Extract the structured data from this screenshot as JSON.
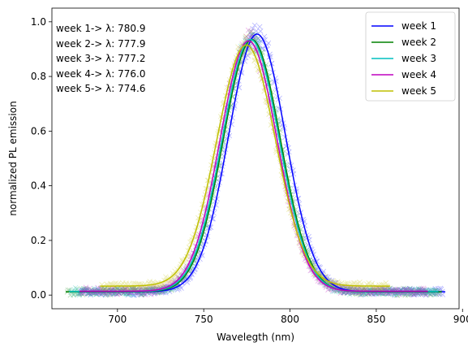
{
  "chart_data": {
    "type": "line",
    "title": "",
    "xlabel": "Wavelegth (nm)",
    "ylabel": "normalized PL emission",
    "xlim": [
      662,
      898
    ],
    "ylim": [
      -0.05,
      1.05
    ],
    "xticks": [
      700,
      750,
      800,
      850,
      900
    ],
    "yticks": [
      0.0,
      0.2,
      0.4,
      0.6,
      0.8,
      1.0
    ],
    "xtick_labels": [
      "700",
      "750",
      "800",
      "850",
      "900"
    ],
    "ytick_labels": [
      "0.0",
      "0.2",
      "0.4",
      "0.6",
      "0.8",
      "1.0"
    ],
    "grid": false,
    "legend_position": "top-right",
    "annotations": [
      "week 1-> λ: 780.9",
      "week 2-> λ: 777.9",
      "week 3-> λ: 777.2",
      "week 4-> λ: 776.0",
      "week 5-> λ: 774.6"
    ],
    "series": [
      {
        "name": "week 1",
        "color": "#0000ff",
        "peak_nm": 780.9,
        "amplitude": 0.955,
        "sigma_nm": 16.5,
        "baseline": 0.012,
        "x_range": [
          677,
          890
        ],
        "marker": "x"
      },
      {
        "name": "week 2",
        "color": "#008000",
        "peak_nm": 777.9,
        "amplitude": 0.935,
        "sigma_nm": 16.5,
        "baseline": 0.012,
        "x_range": [
          670,
          888
        ],
        "marker": "x"
      },
      {
        "name": "week 3",
        "color": "#00bfbf",
        "peak_nm": 777.2,
        "amplitude": 0.935,
        "sigma_nm": 16.5,
        "baseline": 0.013,
        "x_range": [
          672,
          886
        ],
        "marker": "x"
      },
      {
        "name": "week 4",
        "color": "#bf00bf",
        "peak_nm": 776.0,
        "amplitude": 0.93,
        "sigma_nm": 16.5,
        "baseline": 0.014,
        "x_range": [
          678,
          880
        ],
        "marker": "x"
      },
      {
        "name": "week 5",
        "color": "#bfbf00",
        "peak_nm": 774.6,
        "amplitude": 0.915,
        "sigma_nm": 17.0,
        "baseline": 0.033,
        "x_range": [
          690,
          858
        ],
        "marker": "x"
      }
    ]
  }
}
